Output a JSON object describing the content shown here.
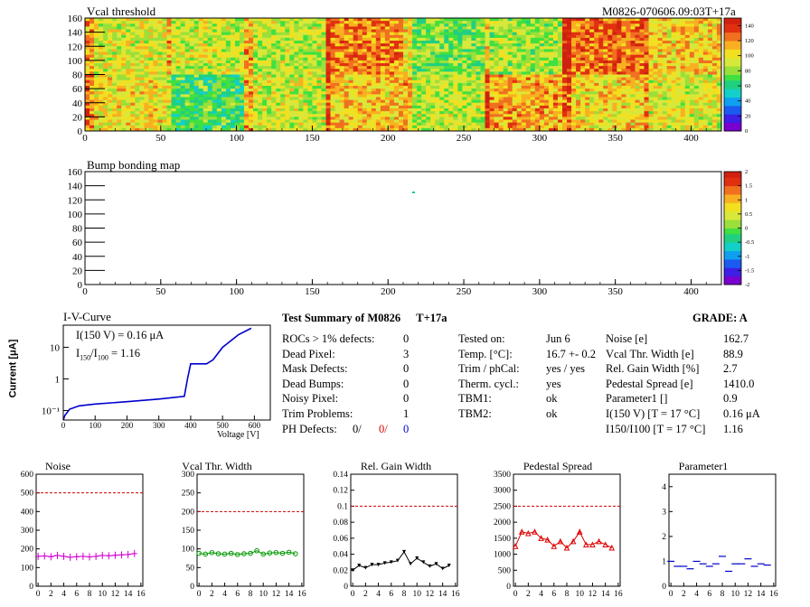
{
  "vcal_map": {
    "title": "Vcal threshold",
    "module_label": "M0826-070606.09:03T+17a",
    "x_ticks": [
      "0",
      "50",
      "100",
      "150",
      "200",
      "250",
      "300",
      "350",
      "400"
    ],
    "y_ticks": [
      "0",
      "20",
      "40",
      "60",
      "80",
      "100",
      "120",
      "140",
      "160"
    ],
    "colorbar_ticks": [
      "0",
      "20",
      "40",
      "60",
      "80",
      "100",
      "120",
      "140"
    ],
    "colors": {
      "low": "#7b2fd6",
      "mid": "#9ad640",
      "high": "#e33d1a"
    }
  },
  "bump_map": {
    "title": "Bump bonding map",
    "x_ticks": [
      "0",
      "50",
      "100",
      "150",
      "200",
      "250",
      "300",
      "350",
      "400"
    ],
    "y_ticks": [
      "0",
      "20",
      "40",
      "60",
      "80",
      "100",
      "120",
      "140",
      "160"
    ],
    "colorbar_ticks": [
      "-2",
      "-1.5",
      "-1",
      "-0.5",
      "0",
      "0.5",
      "1",
      "1.5",
      "2"
    ]
  },
  "iv_curve": {
    "title": "I-V-Curve",
    "ylabel": "Current [μA]",
    "xlabel": "Voltage [V]",
    "annotation1": "I(150 V) = 0.16 μA",
    "annotation2_pre": "I",
    "annotation2_sub1": "150",
    "annotation2_mid": "/I",
    "annotation2_sub2": "100",
    "annotation2_post": " =  1.16",
    "x_ticks": [
      "0",
      "100",
      "200",
      "300",
      "400",
      "500",
      "600"
    ],
    "y_ticks": [
      "10⁻¹",
      "1",
      "10"
    ]
  },
  "summary": {
    "title": "Test Summary of M0826",
    "suffix": "T+17a",
    "grade": "GRADE:  A",
    "left": [
      {
        "label": "ROCs > 1% defects:",
        "value": "0"
      },
      {
        "label": "Dead Pixel:",
        "value": "3"
      },
      {
        "label": "Mask Defects:",
        "value": "0"
      },
      {
        "label": "Dead Bumps:",
        "value": "0"
      },
      {
        "label": "Noisy Pixel:",
        "value": "0"
      },
      {
        "label": "Trim Problems:",
        "value": "1"
      }
    ],
    "ph_label": "PH Defects:",
    "ph_values": [
      "0/",
      "0/",
      "0"
    ],
    "ph_colors": [
      "#000000",
      "#e00000",
      "#0000cc"
    ],
    "middle": [
      {
        "label": "Tested on:",
        "value": "Jun 6"
      },
      {
        "label": "Temp. [°C]:",
        "value": "16.7 +- 0.2"
      },
      {
        "label": "Trim / phCal:",
        "value": "yes / yes"
      },
      {
        "label": "Therm. cycl.:",
        "value": "yes"
      },
      {
        "label": "TBM1:",
        "value": "ok"
      },
      {
        "label": "TBM2:",
        "value": "ok"
      }
    ],
    "right": [
      {
        "label": "Noise [e]",
        "value": "162.7"
      },
      {
        "label": "Vcal Thr. Width [e]",
        "value": "88.9"
      },
      {
        "label": "Rel. Gain Width [%]",
        "value": "2.7"
      },
      {
        "label": "Pedestal Spread [e]",
        "value": "1410.0"
      },
      {
        "label": "Parameter1 []",
        "value": "0.9"
      },
      {
        "label": "I(150 V) [T = 17 °C]",
        "value": "0.16 μA"
      },
      {
        "label": "I150/I100  [T = 17 °C]",
        "value": "1.16"
      }
    ]
  },
  "chart_data": [
    {
      "type": "line",
      "title": "I-V-Curve",
      "xlabel": "Voltage [V]",
      "ylabel": "Current [μA]",
      "yscale": "log",
      "xlim": [
        0,
        650
      ],
      "ylim": [
        0.05,
        50
      ],
      "x": [
        0,
        5,
        20,
        50,
        100,
        200,
        300,
        380,
        390,
        400,
        450,
        470,
        500,
        550,
        590
      ],
      "y": [
        0.05,
        0.07,
        0.11,
        0.14,
        0.16,
        0.19,
        0.23,
        0.28,
        1.0,
        3.0,
        3.0,
        4.0,
        10,
        25,
        40
      ]
    },
    {
      "type": "line",
      "title": "Noise",
      "ylim": [
        0,
        600
      ],
      "x": [
        0,
        1,
        2,
        3,
        4,
        5,
        6,
        7,
        8,
        9,
        10,
        11,
        12,
        13,
        14,
        15
      ],
      "values": [
        160,
        162,
        158,
        165,
        160,
        155,
        158,
        160,
        157,
        160,
        165,
        163,
        166,
        168,
        170,
        175
      ],
      "threshold": 500,
      "color": "#d000d0"
    },
    {
      "type": "line",
      "title": "Vcal Thr. Width",
      "ylim": [
        0,
        300
      ],
      "x": [
        0,
        1,
        2,
        3,
        4,
        5,
        6,
        7,
        8,
        9,
        10,
        11,
        12,
        13,
        14,
        15
      ],
      "values": [
        88,
        86,
        90,
        87,
        86,
        88,
        85,
        87,
        88,
        95,
        86,
        89,
        90,
        88,
        91,
        87
      ],
      "threshold": 200,
      "color": "#009900"
    },
    {
      "type": "line",
      "title": "Rel. Gain Width",
      "ylim": [
        0,
        0.14
      ],
      "x": [
        0,
        1,
        2,
        3,
        4,
        5,
        6,
        7,
        8,
        9,
        10,
        11,
        12,
        13,
        14,
        15
      ],
      "values": [
        0.02,
        0.026,
        0.023,
        0.027,
        0.027,
        0.029,
        0.03,
        0.032,
        0.043,
        0.028,
        0.035,
        0.03,
        0.025,
        0.028,
        0.022,
        0.026
      ],
      "threshold": 0.1,
      "color": "#000000"
    },
    {
      "type": "line",
      "title": "Pedestal Spread",
      "ylim": [
        0,
        3500
      ],
      "x": [
        0,
        1,
        2,
        3,
        4,
        5,
        6,
        7,
        8,
        9,
        10,
        11,
        12,
        13,
        14,
        15
      ],
      "values": [
        1250,
        1700,
        1650,
        1700,
        1500,
        1450,
        1250,
        1400,
        1200,
        1400,
        1700,
        1300,
        1300,
        1400,
        1300,
        1200
      ],
      "threshold": 2500,
      "color": "#dd0000"
    },
    {
      "type": "scatter",
      "title": "Parameter1",
      "ylim": [
        0,
        4.5
      ],
      "x": [
        0,
        1,
        2,
        3,
        4,
        5,
        6,
        7,
        8,
        9,
        10,
        11,
        12,
        13,
        14,
        15
      ],
      "values": [
        1.0,
        0.8,
        0.8,
        0.7,
        1.0,
        0.9,
        0.8,
        0.9,
        1.2,
        0.6,
        0.9,
        0.9,
        1.1,
        0.8,
        0.9,
        0.85
      ],
      "color": "#0000cc"
    }
  ]
}
